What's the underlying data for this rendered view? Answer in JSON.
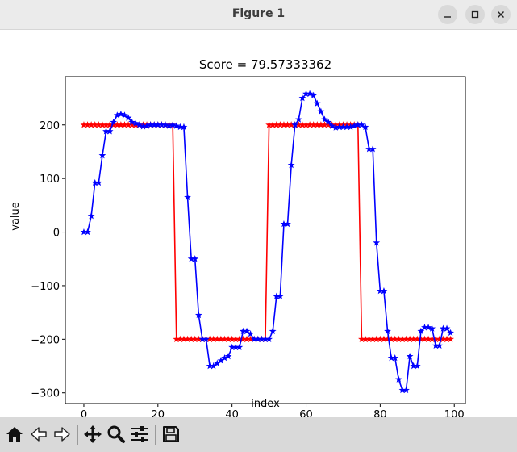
{
  "window": {
    "title": "Figure 1"
  },
  "toolbar": {
    "buttons": [
      {
        "name": "home-icon"
      },
      {
        "name": "back-arrow-icon"
      },
      {
        "name": "forward-arrow-icon"
      },
      {
        "name": "pan-move-icon"
      },
      {
        "name": "zoom-magnifier-icon"
      },
      {
        "name": "configure-subplots-icon"
      },
      {
        "name": "save-floppy-icon"
      }
    ]
  },
  "chart_data": {
    "type": "line",
    "title": "Score = 79.57333362",
    "xlabel": "index",
    "ylabel": "value",
    "xlim": [
      -5,
      103
    ],
    "ylim": [
      -320,
      290
    ],
    "xticks": [
      0,
      20,
      40,
      60,
      80,
      100
    ],
    "yticks": [
      -300,
      -200,
      -100,
      0,
      100,
      200
    ],
    "grid": false,
    "marker": "star",
    "colors": {
      "target": "#ff0000",
      "prediction": "#0000ff"
    },
    "x": [
      0,
      1,
      2,
      3,
      4,
      5,
      6,
      7,
      8,
      9,
      10,
      11,
      12,
      13,
      14,
      15,
      16,
      17,
      18,
      19,
      20,
      21,
      22,
      23,
      24,
      25,
      26,
      27,
      28,
      29,
      30,
      31,
      32,
      33,
      34,
      35,
      36,
      37,
      38,
      39,
      40,
      41,
      42,
      43,
      44,
      45,
      46,
      47,
      48,
      49,
      50,
      51,
      52,
      53,
      54,
      55,
      56,
      57,
      58,
      59,
      60,
      61,
      62,
      63,
      64,
      65,
      66,
      67,
      68,
      69,
      70,
      71,
      72,
      73,
      74,
      75,
      76,
      77,
      78,
      79,
      80,
      81,
      82,
      83,
      84,
      85,
      86,
      87,
      88,
      89,
      90,
      91,
      92,
      93,
      94,
      95,
      96,
      97,
      98,
      99
    ],
    "series": [
      {
        "values": [
          200,
          200,
          200,
          200,
          200,
          200,
          200,
          200,
          200,
          200,
          200,
          200,
          200,
          200,
          200,
          200,
          200,
          200,
          200,
          200,
          200,
          200,
          200,
          200,
          200,
          -200,
          -200,
          -200,
          -200,
          -200,
          -200,
          -200,
          -200,
          -200,
          -200,
          -200,
          -200,
          -200,
          -200,
          -200,
          -200,
          -200,
          -200,
          -200,
          -200,
          -200,
          -200,
          -200,
          -200,
          -200,
          200,
          200,
          200,
          200,
          200,
          200,
          200,
          200,
          200,
          200,
          200,
          200,
          200,
          200,
          200,
          200,
          200,
          200,
          200,
          200,
          200,
          200,
          200,
          200,
          200,
          -200,
          -200,
          -200,
          -200,
          -200,
          -200,
          -200,
          -200,
          -200,
          -200,
          -200,
          -200,
          -200,
          -200,
          -200,
          -200,
          -200,
          -200,
          -200,
          -200,
          -200,
          -200,
          -200,
          -200,
          -200
        ]
      },
      {
        "values": [
          0,
          0,
          30,
          92,
          92,
          143,
          188,
          188,
          205,
          218,
          220,
          218,
          213,
          205,
          203,
          200,
          197,
          198,
          200,
          200,
          200,
          200,
          200,
          198,
          200,
          198,
          196,
          196,
          65,
          -50,
          -50,
          -155,
          -200,
          -200,
          -250,
          -250,
          -245,
          -240,
          -235,
          -232,
          -215,
          -215,
          -215,
          -185,
          -185,
          -190,
          -200,
          -200,
          -200,
          -200,
          -200,
          -185,
          -120,
          -120,
          15,
          15,
          125,
          200,
          210,
          250,
          258,
          258,
          255,
          240,
          225,
          210,
          205,
          198,
          195,
          196,
          196,
          196,
          196,
          198,
          200,
          200,
          196,
          155,
          155,
          -20,
          -110,
          -110,
          -185,
          -235,
          -235,
          -275,
          -295,
          -295,
          -232,
          -250,
          -250,
          -185,
          -178,
          -178,
          -180,
          -212,
          -212,
          -180,
          -180,
          -188
        ]
      }
    ]
  }
}
